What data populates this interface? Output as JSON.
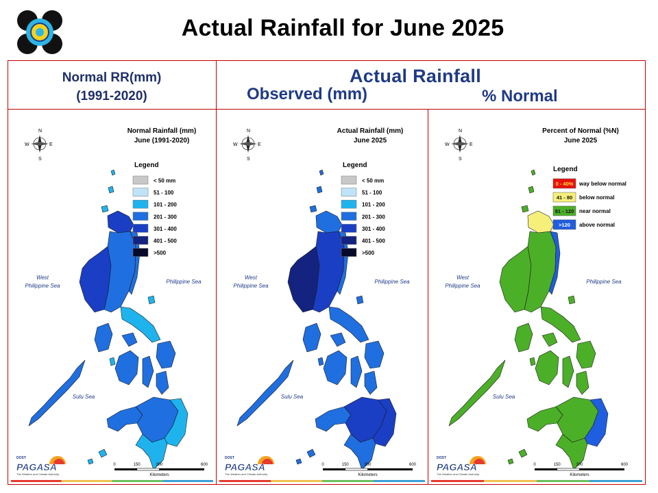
{
  "title": "Actual Rainfall for June 2025",
  "headers": {
    "normal_line1": "Normal RR(mm)",
    "normal_line2": "(1991-2020)",
    "actual": "Actual Rainfall",
    "observed": "Observed (mm)",
    "percent": "% Normal"
  },
  "colors": {
    "frame": "#c00000",
    "header_text": "#1f3a86",
    "lt50": "#c8c8c8",
    "r51_100": "#bfe3f7",
    "r101_200": "#1fb3ee",
    "r201_300": "#1f6fe0",
    "r301_400": "#1a3fc4",
    "r401_500": "#14237f",
    "gt500": "#070a2a",
    "way_below": "#e8110f",
    "below": "#f6f07a",
    "near": "#4caf28",
    "above": "#1f5ee0"
  },
  "panels": [
    {
      "id": "normal",
      "map_title_1": "Normal Rainfall (mm)",
      "map_title_2": "June (1991-2020)",
      "legend_title": "Legend",
      "legend": [
        {
          "label": "< 50 mm",
          "color": "#c8c8c8"
        },
        {
          "label": "51 - 100",
          "color": "#bfe3f7"
        },
        {
          "label": "101 - 200",
          "color": "#1fb3ee"
        },
        {
          "label": "201 - 300",
          "color": "#1f6fe0"
        },
        {
          "label": "301 - 400",
          "color": "#1a3fc4"
        },
        {
          "label": "401 - 500",
          "color": "#14237f"
        },
        {
          "label": ">500",
          "color": "#070a2a"
        }
      ],
      "regions": {
        "north": "#1a3fc4",
        "luzon_west": "#1a3fc4",
        "luzon_center": "#1f6fe0",
        "luzon_east": "#1f6fe0",
        "bicol": "#1fb3ee",
        "mindoro": "#1f6fe0",
        "palawan": "#1f6fe0",
        "visayas": "#1f6fe0",
        "samar": "#1f6fe0",
        "mindanao_west": "#1f6fe0",
        "mindanao_center": "#1f6fe0",
        "mindanao_east": "#1fb3ee",
        "mindanao_south": "#1fb3ee",
        "islets": "#1fb3ee"
      }
    },
    {
      "id": "actual",
      "map_title_1": "Actual Rainfall (mm)",
      "map_title_2": "June 2025",
      "legend_title": "Legend",
      "legend": [
        {
          "label": "< 50 mm",
          "color": "#c8c8c8"
        },
        {
          "label": "51 - 100",
          "color": "#bfe3f7"
        },
        {
          "label": "101 - 200",
          "color": "#1fb3ee"
        },
        {
          "label": "201 - 300",
          "color": "#1f6fe0"
        },
        {
          "label": "301 - 400",
          "color": "#1a3fc4"
        },
        {
          "label": "401 - 500",
          "color": "#14237f"
        },
        {
          "label": ">500",
          "color": "#070a2a"
        }
      ],
      "regions": {
        "north": "#1f6fe0",
        "luzon_west": "#14237f",
        "luzon_center": "#1a3fc4",
        "luzon_east": "#1f6fe0",
        "bicol": "#1f6fe0",
        "mindoro": "#1f6fe0",
        "palawan": "#1f6fe0",
        "visayas": "#1f6fe0",
        "samar": "#1f6fe0",
        "mindanao_west": "#1f6fe0",
        "mindanao_center": "#1a3fc4",
        "mindanao_east": "#1a3fc4",
        "mindanao_south": "#1f6fe0",
        "islets": "#1f6fe0"
      }
    },
    {
      "id": "percent",
      "map_title_1": "Percent of Normal (%N)",
      "map_title_2": "June 2025",
      "legend_title": "Legend",
      "legend": [
        {
          "swatch": "0 - 40%",
          "label": "way below normal",
          "color": "#e8110f"
        },
        {
          "swatch": "41 - 80",
          "label": "below normal",
          "color": "#f6f07a"
        },
        {
          "swatch": "81 - 120",
          "label": "near normal",
          "color": "#4caf28"
        },
        {
          "swatch": ">120",
          "label": "above normal",
          "color": "#1f5ee0"
        }
      ],
      "regions": {
        "north": "#f6f07a",
        "luzon_west": "#4caf28",
        "luzon_center": "#4caf28",
        "luzon_east": "#1f5ee0",
        "bicol": "#4caf28",
        "mindoro": "#4caf28",
        "palawan": "#4caf28",
        "visayas": "#4caf28",
        "samar": "#4caf28",
        "mindanao_west": "#4caf28",
        "mindanao_center": "#4caf28",
        "mindanao_east": "#1f5ee0",
        "mindanao_south": "#4caf28",
        "islets": "#4caf28"
      }
    }
  ],
  "map_labels": {
    "west_sea_1": "West",
    "west_sea_2": "Philippine Sea",
    "east_sea": "Philippine Sea",
    "sulu_sea": "Sulu Sea",
    "compass_n": "N",
    "compass_s": "S",
    "compass_e": "E",
    "compass_w": "W"
  },
  "scale": {
    "ticks": [
      "0",
      "150",
      "300",
      "600"
    ],
    "unit": "Kilometers"
  },
  "branding": {
    "dost": "DOST",
    "pagasa": "PAGASA",
    "tagline": "The Weather and Climate Authority"
  },
  "footer_colors": [
    "#e63a2e",
    "#f2c14e",
    "#6bbf59",
    "#3aa0d8"
  ]
}
